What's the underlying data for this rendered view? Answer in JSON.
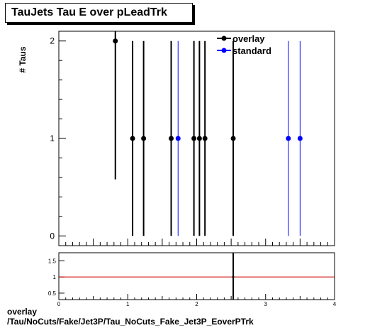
{
  "title": "TauJets Tau E over pLeadTrk",
  "caption": {
    "line1": "overlay",
    "line2": "/Tau/NoCuts/Fake/Jet3P/Tau_NoCuts_Fake_Jet3P_EoverPTrk"
  },
  "colors": {
    "overlay": "#000000",
    "standard": "#0000ff",
    "ratio_line": "#cc0000"
  },
  "chart_data": [
    {
      "type": "scatter",
      "title": "TauJets Tau E over pLeadTrk",
      "ylabel": "# Taus",
      "xlabel": "",
      "xlim": [
        0,
        4
      ],
      "ylim": [
        -0.1,
        2.1
      ],
      "yticks": [
        0,
        1,
        2
      ],
      "legend_position": "top-right",
      "series": [
        {
          "name": "overlay",
          "color": "#000000",
          "points": [
            {
              "x": 0.82,
              "y": 2,
              "ylo": 0.58,
              "yhi": 2.1
            },
            {
              "x": 1.07,
              "y": 1,
              "ylo": 0,
              "yhi": 2
            },
            {
              "x": 1.23,
              "y": 1,
              "ylo": 0,
              "yhi": 2
            },
            {
              "x": 1.63,
              "y": 1,
              "ylo": 0,
              "yhi": 2
            },
            {
              "x": 1.96,
              "y": 1,
              "ylo": 0,
              "yhi": 2
            },
            {
              "x": 2.04,
              "y": 1,
              "ylo": 0,
              "yhi": 2
            },
            {
              "x": 2.12,
              "y": 1,
              "ylo": 0,
              "yhi": 2
            },
            {
              "x": 2.53,
              "y": 1,
              "ylo": 0,
              "yhi": 2
            }
          ]
        },
        {
          "name": "standard",
          "color": "#0000ff",
          "points": [
            {
              "x": 1.73,
              "y": 1,
              "ylo": 0,
              "yhi": 2
            },
            {
              "x": 3.33,
              "y": 1,
              "ylo": 0,
              "yhi": 2
            },
            {
              "x": 3.5,
              "y": 1,
              "ylo": 0,
              "yhi": 2
            }
          ]
        }
      ]
    },
    {
      "type": "line",
      "title": "",
      "xlim": [
        0,
        4
      ],
      "ylim": [
        0.3,
        1.75
      ],
      "yticks": [
        0.5,
        1,
        1.5
      ],
      "ytick_labels": [
        "0.5",
        "1",
        "1.5"
      ],
      "xticks": [
        0,
        1,
        2,
        3,
        4
      ],
      "xtick_labels": [
        "0",
        "1",
        "2",
        "3",
        "4"
      ],
      "reference_line": 1,
      "series": [
        {
          "name": "",
          "x": [
            2.53
          ],
          "y": [
            1
          ],
          "ylo": [
            0.3
          ],
          "yhi": [
            1.75
          ]
        }
      ]
    }
  ]
}
